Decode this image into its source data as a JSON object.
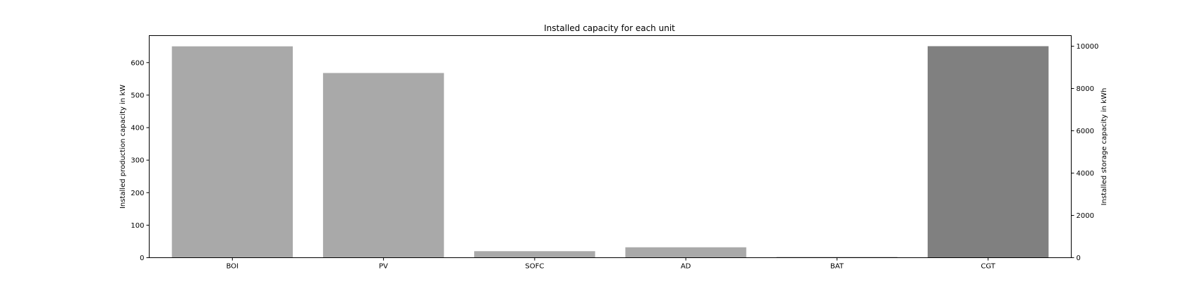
{
  "chart_data": {
    "type": "bar",
    "title": "Installed capacity for each unit",
    "categories": [
      "BOI",
      "PV",
      "SOFC",
      "AD",
      "BAT",
      "CGT"
    ],
    "series": [
      {
        "axis": "left",
        "color": "#a9a9a9",
        "values": [
          650,
          568,
          20,
          32,
          0,
          null
        ]
      },
      {
        "axis": "right",
        "color": "#808080",
        "values": [
          null,
          null,
          null,
          null,
          10,
          10000
        ]
      }
    ],
    "ylabel_left": "Installed production capacity in kW",
    "ylabel_right": "Installed storage capacity in kWh",
    "ylim_left": [
      0,
      683
    ],
    "ylim_right": [
      0,
      10500
    ],
    "yticks_left": [
      0,
      100,
      200,
      300,
      400,
      500,
      600
    ],
    "yticks_right": [
      0,
      2000,
      4000,
      6000,
      8000,
      10000
    ],
    "grid": false,
    "legend": "none"
  }
}
